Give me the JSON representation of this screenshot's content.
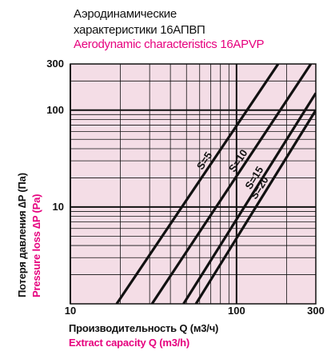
{
  "titles": {
    "line1": "Аэродинамические",
    "line2": "характеристики 16АПВП",
    "line3": "Aerodynamic characteristics 16APVP"
  },
  "colors": {
    "accent": "#e6007e",
    "plot_bg": "#f4dde6",
    "ink": "#111111"
  },
  "chart_data": {
    "type": "line",
    "x_scale": "log",
    "y_scale": "log",
    "xlim": [
      10,
      300
    ],
    "ylim": [
      1,
      300
    ],
    "x_ticks": [
      {
        "value": 10,
        "label": "10"
      },
      {
        "value": 100,
        "label": "100"
      },
      {
        "value": 300,
        "label": "300"
      }
    ],
    "y_ticks": [
      {
        "value": 10,
        "label": "10"
      },
      {
        "value": 100,
        "label": "100"
      },
      {
        "value": 300,
        "label": "300"
      }
    ],
    "xlabel": "Производительность Q (м3/ч)",
    "xlabel_en": "Extract capacity Q (m3/h)",
    "ylabel": "Потеря давления ∆P (Па)",
    "ylabel_en": "Pressure loss ∆P (Pa)",
    "grid": true,
    "series": [
      {
        "name": "S=5",
        "points": [
          [
            19,
            1
          ],
          [
            178,
            300
          ]
        ]
      },
      {
        "name": "S=10",
        "points": [
          [
            31,
            1
          ],
          [
            280,
            300
          ]
        ]
      },
      {
        "name": "S=15",
        "points": [
          [
            48,
            1
          ],
          [
            300,
            150
          ]
        ]
      },
      {
        "name": "S=20",
        "points": [
          [
            57,
            1
          ],
          [
            300,
            100
          ]
        ]
      }
    ]
  }
}
